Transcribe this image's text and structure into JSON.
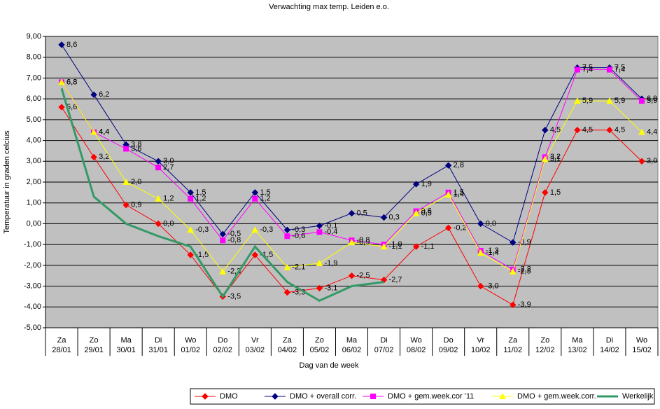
{
  "chart_data": {
    "type": "line",
    "title": "Verwachting max temp. Leiden e.o.",
    "x_label": "Dag van de week",
    "y_label": "Temperatuur in graden celcius",
    "categories": [
      "Za\n28/01",
      "Zo\n29/01",
      "Ma\n30/01",
      "Di\n31/01",
      "Wo\n01/02",
      "Do\n02/02",
      "Vr\n03/02",
      "Za\n04/02",
      "Zo\n05/02",
      "Ma\n06/02",
      "Di\n07/02",
      "Wo\n08/02",
      "Do\n09/02",
      "Vr\n10/02",
      "Za\n11/02",
      "Zo\n12/02",
      "Ma\n13/02",
      "Di\n14/02",
      "Wo\n15/02"
    ],
    "ylim": [
      -5,
      9
    ],
    "yticks": [
      {
        "value": -5,
        "label": "-5,00"
      },
      {
        "value": -4,
        "label": "-4,00"
      },
      {
        "value": -3,
        "label": "-3,00"
      },
      {
        "value": -2,
        "label": "-2,00"
      },
      {
        "value": -1,
        "label": "-1,00"
      },
      {
        "value": 0,
        "label": "0,00"
      },
      {
        "value": 1,
        "label": "1,00"
      },
      {
        "value": 2,
        "label": "2,00"
      },
      {
        "value": 3,
        "label": "3,00"
      },
      {
        "value": 4,
        "label": "4,00"
      },
      {
        "value": 5,
        "label": "5,00"
      },
      {
        "value": 6,
        "label": "6,00"
      },
      {
        "value": 7,
        "label": "7,00"
      },
      {
        "value": 8,
        "label": "8,00"
      },
      {
        "value": 9,
        "label": "9,00"
      }
    ],
    "grid": true,
    "legend": "bottom-right",
    "series": [
      {
        "name": "DMO",
        "color": "#ff0000",
        "marker": "diamond",
        "values": [
          5.6,
          3.2,
          0.9,
          0.0,
          -1.5,
          -3.5,
          -1.5,
          -3.3,
          -3.1,
          -2.5,
          -2.7,
          -1.1,
          -0.2,
          -3.0,
          -3.9,
          1.5,
          4.5,
          4.5,
          3.0
        ],
        "value_labels": [
          "5,6",
          "3,2",
          "0,9",
          "0,0",
          "-1,5",
          "-3,5",
          "-1,5",
          "-3,3",
          "-3,1",
          "-2,5",
          "-2,7",
          "-1,1",
          "-0,2",
          "-3,0",
          "-3,9",
          "1,5",
          "4,5",
          "4,5",
          "3,0"
        ]
      },
      {
        "name": "DMO + overall corr.",
        "color": "#000080",
        "marker": "diamond",
        "values": [
          8.6,
          6.2,
          3.8,
          3.0,
          1.5,
          -0.5,
          1.5,
          -0.3,
          -0.1,
          0.5,
          0.3,
          1.9,
          2.8,
          0.0,
          -0.9,
          4.5,
          7.5,
          7.5,
          6.0
        ],
        "value_labels": [
          "8,6",
          "6,2",
          "3,8",
          "3,0",
          "1,5",
          "-0,5",
          "1,5",
          "-0,3",
          "-0,1",
          "0,5",
          "0,3",
          "1,9",
          "2,8",
          "0,0",
          "-0,9",
          "4,5",
          "7,5",
          "7,5",
          "6,0"
        ]
      },
      {
        "name": "DMO + gem.week.cor '11",
        "color": "#ff00ff",
        "marker": "square",
        "values": [
          6.8,
          4.4,
          3.6,
          2.7,
          1.2,
          -0.8,
          1.2,
          -0.6,
          -0.4,
          -0.8,
          -1.0,
          0.6,
          1.5,
          -1.3,
          -2.2,
          3.2,
          7.4,
          7.4,
          5.9
        ],
        "value_labels": [
          "6,8",
          "4,4",
          "3,6",
          "2,7",
          "1,2",
          "-0,8",
          "1,2",
          "-0,6",
          "-0,4",
          "-0,8",
          "-1,0",
          "0,6",
          "1,5",
          "-1,3",
          "-2,2",
          "3,2",
          "7,4",
          "7,4",
          "5,9"
        ]
      },
      {
        "name": "DMO + gem.week.corr.",
        "color": "#ffff00",
        "marker": "triangle",
        "values": [
          6.8,
          4.4,
          2.0,
          1.2,
          -0.3,
          -2.3,
          -0.3,
          -2.1,
          -1.9,
          -0.9,
          -1.1,
          0.5,
          1.4,
          -1.4,
          -2.3,
          3.1,
          5.9,
          5.9,
          4.4
        ],
        "value_labels": [
          "6,8",
          "4,4",
          "2,0",
          "1,2",
          "-0,3",
          "-2,3",
          "-0,3",
          "-2,1",
          "-1,9",
          "-0,9",
          "-1,1",
          "0,5",
          "1,4",
          "-1,4",
          "-2,3",
          "3,1",
          "5,9",
          "5,9",
          "4,4"
        ]
      },
      {
        "name": "Werkelijk",
        "color": "#339966",
        "marker": "none",
        "width": 3,
        "values": [
          6.5,
          1.3,
          0.0,
          -0.6,
          -1.1,
          -3.5,
          -1.1,
          -2.8,
          -3.7,
          -3.0,
          -2.8,
          null,
          null,
          null,
          null,
          null,
          null,
          null,
          null
        ]
      }
    ]
  }
}
